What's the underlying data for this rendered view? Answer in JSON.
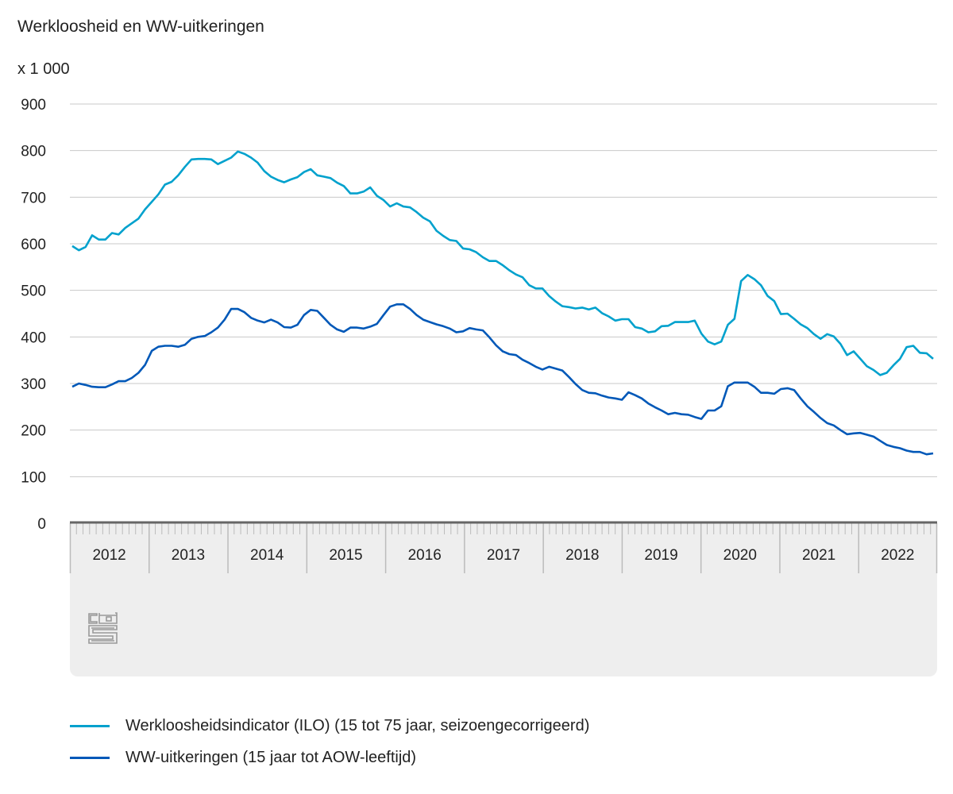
{
  "title": "Werkloosheid en WW-uitkeringen",
  "unit": "x 1 000",
  "colors": {
    "ilo": "#00a1cd",
    "ww": "#0058b8",
    "axis": "#666666",
    "grid": "#c8c8c8",
    "panel": "#eeeeee",
    "logo": "#999999"
  },
  "logo": "cbs",
  "chart_data": {
    "type": "line",
    "title": "Werkloosheid en WW-uitkeringen",
    "ylabel": "x 1 000",
    "ylim": [
      0,
      900
    ],
    "yticks": [
      "0",
      "100",
      "200",
      "300",
      "400",
      "500",
      "600",
      "700",
      "800",
      "900"
    ],
    "xticks": [
      "2012",
      "2013",
      "2014",
      "2015",
      "2016",
      "2017",
      "2018",
      "2019",
      "2020",
      "2021",
      "2022"
    ],
    "grid": true,
    "legend_position": "bottom",
    "x": [
      "2012-01",
      "2012-02",
      "2012-03",
      "2012-04",
      "2012-05",
      "2012-06",
      "2012-07",
      "2012-08",
      "2012-09",
      "2012-10",
      "2012-11",
      "2012-12",
      "2013-01",
      "2013-02",
      "2013-03",
      "2013-04",
      "2013-05",
      "2013-06",
      "2013-07",
      "2013-08",
      "2013-09",
      "2013-10",
      "2013-11",
      "2013-12",
      "2014-01",
      "2014-02",
      "2014-03",
      "2014-04",
      "2014-05",
      "2014-06",
      "2014-07",
      "2014-08",
      "2014-09",
      "2014-10",
      "2014-11",
      "2014-12",
      "2015-01",
      "2015-02",
      "2015-03",
      "2015-04",
      "2015-05",
      "2015-06",
      "2015-07",
      "2015-08",
      "2015-09",
      "2015-10",
      "2015-11",
      "2015-12",
      "2016-01",
      "2016-02",
      "2016-03",
      "2016-04",
      "2016-05",
      "2016-06",
      "2016-07",
      "2016-08",
      "2016-09",
      "2016-10",
      "2016-11",
      "2016-12",
      "2017-01",
      "2017-02",
      "2017-03",
      "2017-04",
      "2017-05",
      "2017-06",
      "2017-07",
      "2017-08",
      "2017-09",
      "2017-10",
      "2017-11",
      "2017-12",
      "2018-01",
      "2018-02",
      "2018-03",
      "2018-04",
      "2018-05",
      "2018-06",
      "2018-07",
      "2018-08",
      "2018-09",
      "2018-10",
      "2018-11",
      "2018-12",
      "2019-01",
      "2019-02",
      "2019-03",
      "2019-04",
      "2019-05",
      "2019-06",
      "2019-07",
      "2019-08",
      "2019-09",
      "2019-10",
      "2019-11",
      "2019-12",
      "2020-01",
      "2020-02",
      "2020-03",
      "2020-04",
      "2020-05",
      "2020-06",
      "2020-07",
      "2020-08",
      "2020-09",
      "2020-10",
      "2020-11",
      "2020-12",
      "2021-01",
      "2021-02",
      "2021-03",
      "2021-04",
      "2021-05",
      "2021-06",
      "2021-07",
      "2021-08",
      "2021-09",
      "2021-10",
      "2021-11",
      "2021-12",
      "2022-01",
      "2022-02",
      "2022-03",
      "2022-04",
      "2022-05",
      "2022-06",
      "2022-07",
      "2022-08",
      "2022-09",
      "2022-10",
      "2022-11"
    ],
    "series": [
      {
        "name": "Werkloosheidsindicator (ILO) (15 tot 75 jaar, seizoengecorrigeerd)",
        "color": "#00a1cd",
        "values": [
          595,
          586,
          593,
          618,
          609,
          609,
          623,
          620,
          634,
          644,
          654,
          674,
          690,
          706,
          727,
          733,
          747,
          765,
          781,
          782,
          782,
          781,
          771,
          778,
          785,
          798,
          793,
          785,
          774,
          756,
          744,
          737,
          732,
          738,
          743,
          754,
          760,
          747,
          744,
          741,
          731,
          724,
          708,
          708,
          712,
          721,
          703,
          694,
          680,
          687,
          680,
          678,
          668,
          656,
          648,
          628,
          617,
          608,
          606,
          590,
          588,
          582,
          571,
          563,
          563,
          554,
          543,
          534,
          528,
          511,
          504,
          504,
          488,
          476,
          466,
          464,
          461,
          463,
          459,
          463,
          451,
          444,
          435,
          438,
          438,
          421,
          418,
          410,
          412,
          423,
          424,
          432,
          432,
          432,
          435,
          407,
          390,
          384,
          390,
          426,
          439,
          520,
          533,
          524,
          511,
          488,
          477,
          449,
          450,
          439,
          427,
          419,
          406,
          396,
          406,
          401,
          385,
          361,
          369,
          353,
          337,
          329,
          318,
          323,
          339,
          353,
          378,
          381,
          366,
          365,
          353
        ]
      },
      {
        "name": "WW-uitkeringen (15 jaar tot AOW-leeftijd)",
        "color": "#0058b8",
        "values": [
          293,
          300,
          297,
          293,
          292,
          292,
          298,
          305,
          305,
          312,
          323,
          340,
          370,
          379,
          381,
          381,
          379,
          383,
          396,
          400,
          402,
          410,
          420,
          437,
          460,
          460,
          453,
          441,
          435,
          431,
          437,
          431,
          421,
          420,
          426,
          447,
          458,
          456,
          441,
          426,
          416,
          411,
          420,
          420,
          418,
          422,
          428,
          447,
          465,
          470,
          470,
          460,
          447,
          437,
          432,
          427,
          423,
          418,
          410,
          412,
          419,
          416,
          414,
          399,
          382,
          369,
          363,
          361,
          351,
          344,
          336,
          330,
          336,
          332,
          328,
          314,
          299,
          286,
          280,
          279,
          274,
          270,
          268,
          265,
          281,
          275,
          268,
          257,
          249,
          242,
          234,
          237,
          234,
          233,
          228,
          224,
          242,
          242,
          251,
          294,
          302,
          302,
          302,
          293,
          280,
          280,
          278,
          288,
          290,
          286,
          268,
          251,
          239,
          226,
          215,
          210,
          200,
          191,
          193,
          194,
          190,
          186,
          177,
          168,
          164,
          161,
          156,
          153,
          153,
          148,
          150
        ]
      }
    ]
  }
}
